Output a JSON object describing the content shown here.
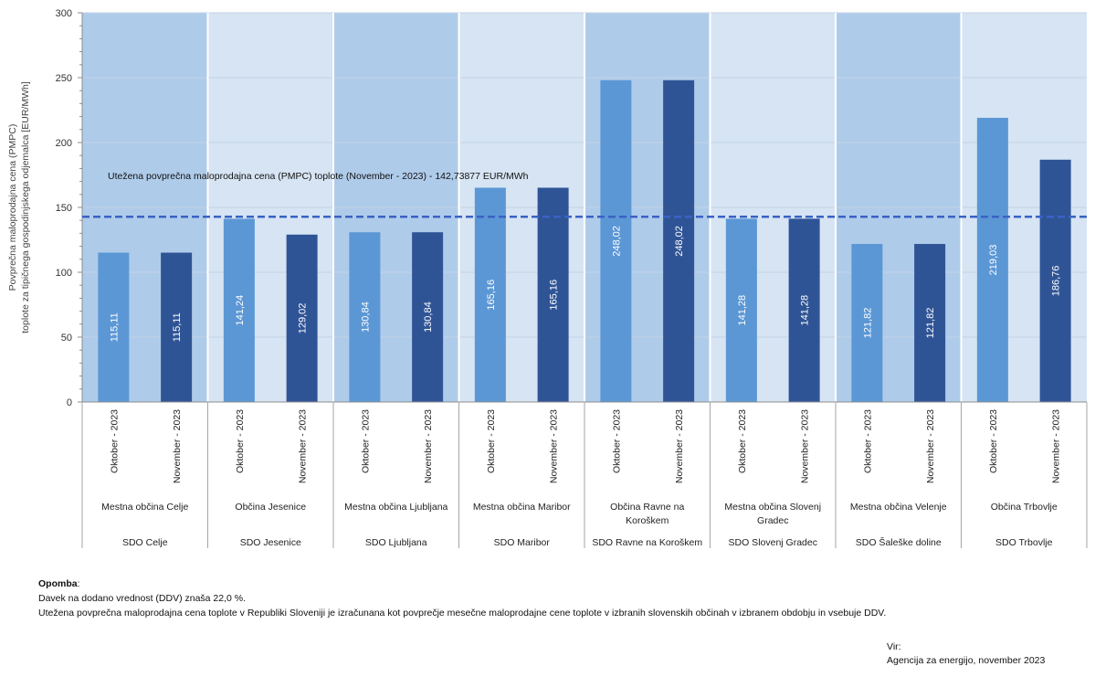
{
  "chart_data": {
    "type": "bar",
    "ylabel_line1": "Povprečna maloprodajna cena (PMPC)",
    "ylabel_line2": "toplote za tipičnega gospodinjskega odjemalca  [EUR/MWh]",
    "ylim": [
      0,
      300
    ],
    "yticks": [
      "0",
      "50",
      "100",
      "150",
      "200",
      "250",
      "300"
    ],
    "period_labels": [
      "Oktober - 2023",
      "November - 2023"
    ],
    "groups": [
      {
        "municipality": [
          "Mestna občina Celje"
        ],
        "company": "SDO Celje",
        "values": [
          115.11,
          115.11
        ],
        "labels": [
          "115,11",
          "115,11"
        ]
      },
      {
        "municipality": [
          "Občina Jesenice"
        ],
        "company": "SDO Jesenice",
        "values": [
          141.24,
          129.02
        ],
        "labels": [
          "141,24",
          "129,02"
        ]
      },
      {
        "municipality": [
          "Mestna občina Ljubljana"
        ],
        "company": "SDO Ljubljana",
        "values": [
          130.84,
          130.84
        ],
        "labels": [
          "130,84",
          "130,84"
        ]
      },
      {
        "municipality": [
          "Mestna občina Maribor"
        ],
        "company": "SDO Maribor",
        "values": [
          165.16,
          165.16
        ],
        "labels": [
          "165,16",
          "165,16"
        ]
      },
      {
        "municipality": [
          "Občina Ravne na",
          "Koroškem"
        ],
        "company": "SDO Ravne na Koroškem",
        "values": [
          248.02,
          248.02
        ],
        "labels": [
          "248,02",
          "248,02"
        ]
      },
      {
        "municipality": [
          "Mestna občina Slovenj",
          "Gradec"
        ],
        "company": "SDO Slovenj Gradec",
        "values": [
          141.28,
          141.28
        ],
        "labels": [
          "141,28",
          "141,28"
        ]
      },
      {
        "municipality": [
          "Mestna občina Velenje"
        ],
        "company": "SDO Šaleške doline",
        "values": [
          121.82,
          121.82
        ],
        "labels": [
          "121,82",
          "121,82"
        ]
      },
      {
        "municipality": [
          "Občina Trbovlje"
        ],
        "company": "SDO Trbovlje",
        "values": [
          219.03,
          186.76
        ],
        "labels": [
          "219,03",
          "186,76"
        ]
      }
    ],
    "reference_line": {
      "value": 142.73877,
      "label": "Utežena povprečna maloprodajna cena (PMPC) toplote (November - 2023) - 142,73877  EUR/MWh",
      "color": "#3a62c4"
    },
    "colors": {
      "oktober": "#5b97d5",
      "november": "#2f5496",
      "band_dark": "#afcbea",
      "band_light": "#d6e4f3"
    }
  },
  "note": {
    "heading": "Opomba",
    "lines": [
      "Davek na dodano vrednost (DDV) znaša 22,0 %.",
      "Utežena povprečna maloprodajna cena toplote v Republiki Sloveniji je izračunana kot povprečje mesečne maloprodajne cene toplote v izbranih slovenskih občinah v izbranem obdobju in vsebuje DDV."
    ]
  },
  "source": {
    "label": "Vir:",
    "text": "Agencija za energijo, november 2023"
  }
}
